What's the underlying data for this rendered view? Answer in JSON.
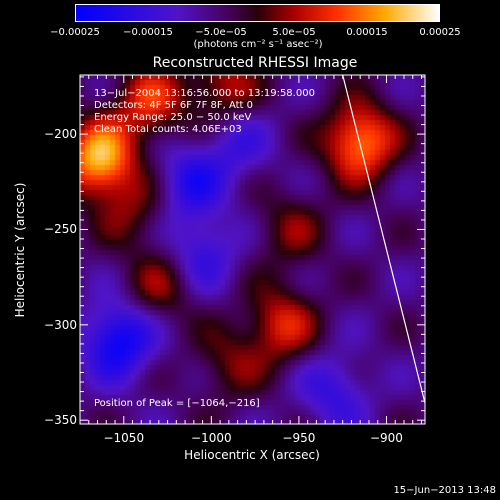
{
  "chart_data": {
    "type": "heatmap",
    "title": "Reconstructed RHESSI Image",
    "xlabel": "Heliocentric X (arcsec)",
    "ylabel": "Heliocentric Y (arcsec)",
    "xlim": [
      -1075,
      -878
    ],
    "ylim": [
      -352,
      -169
    ],
    "x_ticks": [
      -1050,
      -1000,
      -950,
      -900
    ],
    "y_ticks": [
      -200,
      -250,
      -300,
      -350
    ],
    "x_tick_labels": [
      "−1050",
      "−1000",
      "−950",
      "−900"
    ],
    "y_tick_labels": [
      "−200",
      "−250",
      "−300",
      "−350"
    ],
    "colorbar": {
      "range": [
        -0.00025,
        0.00025
      ],
      "tick_values": [
        -0.00025,
        -0.00015,
        -5e-05,
        5e-05,
        0.00015,
        0.00025
      ],
      "tick_labels": [
        "−0.00025",
        "−0.00015",
        "−5.0e−05",
        "5.0e−05",
        "0.00015",
        "0.00025"
      ],
      "units": "(photons cm⁻² s⁻¹ asec⁻²)"
    },
    "annotations": [
      "13−Jul−2004 13:16:56.000 to 13:19:58.000",
      "Detectors: 4F 5F 6F 7F 8F, Att 0",
      "Energy Range: 25.0 − 50.0 keV",
      "Clean     Total counts: 4.06E+03"
    ],
    "peak_label": "Position of Peak = [−1064,−216]",
    "peak": [
      -1064,
      -216
    ],
    "sources": [
      {
        "x": -1064,
        "y": -213,
        "value": 0.00025
      },
      {
        "x": -915,
        "y": -204,
        "value": 0.00022
      },
      {
        "x": -1035,
        "y": -183,
        "value": 0.00015
      },
      {
        "x": -993,
        "y": -175,
        "value": 0.00012
      },
      {
        "x": -960,
        "y": -300,
        "value": 0.00014
      },
      {
        "x": -1030,
        "y": -280,
        "value": 9e-05
      },
      {
        "x": -1045,
        "y": -240,
        "value": 8e-05
      },
      {
        "x": -955,
        "y": -250,
        "value": 8e-05
      },
      {
        "x": -990,
        "y": -320,
        "value": 8e-05
      },
      {
        "x": -1053,
        "y": -308,
        "value": -0.00018
      },
      {
        "x": -1012,
        "y": -225,
        "value": -0.00012
      },
      {
        "x": -1005,
        "y": -262,
        "value": -0.0001
      },
      {
        "x": -930,
        "y": -335,
        "value": -0.0001
      },
      {
        "x": -985,
        "y": -205,
        "value": -8e-05
      }
    ],
    "limb_line": [
      [
        -925,
        -169
      ],
      [
        -878,
        -341
      ]
    ],
    "date_stamp": "15−Jun−2013 13:48"
  }
}
